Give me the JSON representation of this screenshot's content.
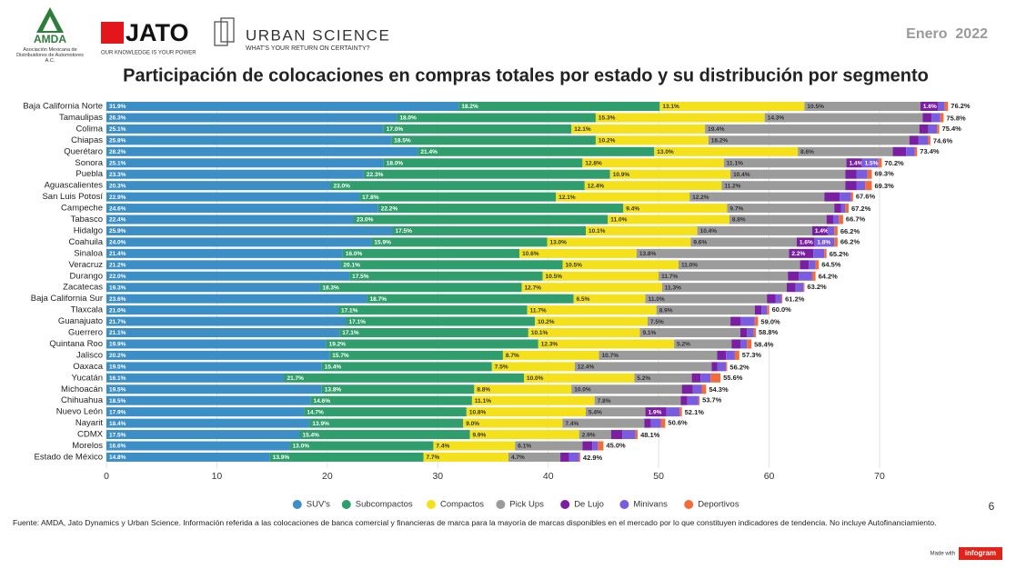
{
  "header": {
    "amda": "AMDA",
    "amda_sub": "Asociación Mexicana de Distribuidores de Automotores A.C.",
    "jato": "JATO",
    "jato_tag": "OUR KNOWLEDGE IS YOUR POWER",
    "urban": "URBAN SCIENCE",
    "urban_tag": "WHAT'S YOUR RETURN ON CERTAINTY?",
    "date": "Enero  2022",
    "page": "6"
  },
  "footer": {
    "source": "Fuente: AMDA, Jato Dynamics y Urban Science. Información referida a las colocaciones de banca comercial y financieras de marca para la mayoría de marcas disponibles en el mercado por lo que constituyen indicadores de tendencia. No incluye Autofinanciamiento.",
    "made": "Made with",
    "brand": "infogram"
  },
  "chart_data": {
    "type": "stacked_barh",
    "title": "Participación de colocaciones en compras totales por estado y su distribución por segmento",
    "categories": [
      "Baja California Norte",
      "Tamaulipas",
      "Colima",
      "Chiapas",
      "Querétaro",
      "Sonora",
      "Puebla",
      "Aguascalientes",
      "San Luis Potosí",
      "Campeche",
      "Tabasco",
      "Hidalgo",
      "Coahuila",
      "Sinaloa",
      "Veracruz",
      "Durango",
      "Zacatecas",
      "Baja California Sur",
      "Tlaxcala",
      "Guanajuato",
      "Guerrero",
      "Quintana Roo",
      "Jalisco",
      "Oaxaca",
      "Yucatán",
      "Michoacán",
      "Chihuahua",
      "Nuevo León",
      "Nayarit",
      "CDMX",
      "Morelos",
      "Estado de México"
    ],
    "series": [
      {
        "name": "SUV's",
        "color": "#3b8fc6",
        "text": "#ffffff",
        "values": [
          31.9,
          26.3,
          25.1,
          25.8,
          28.2,
          25.1,
          23.3,
          20.3,
          22.9,
          24.6,
          22.4,
          25.9,
          24.0,
          21.4,
          21.2,
          22.0,
          19.3,
          23.6,
          21.0,
          21.7,
          21.1,
          19.9,
          20.2,
          19.5,
          16.1,
          19.5,
          18.5,
          17.9,
          18.4,
          17.5,
          16.6,
          14.8
        ],
        "value_labels": [
          "31.9%",
          "26.3%",
          "25.1%",
          "25.8%",
          "28.2%",
          "25.1%",
          "23.3%",
          "20.3%",
          "22.9%",
          "24.6%",
          "22.4%",
          "25.9%",
          "24.0%",
          "21.4%",
          "21.2%",
          "22.0%",
          "19.3%",
          "23.6%",
          "21.0%",
          "21.7%",
          "21.1%",
          "19.9%",
          "20.2%",
          "19.5%",
          "16.1%",
          "19.5%",
          "18.5%",
          "17.9%",
          "18.4%",
          "17.5%",
          "16.6%",
          "14.8%"
        ]
      },
      {
        "name": "Subcompactos",
        "color": "#2f9e6c",
        "text": "#ffffff",
        "values": [
          18.2,
          18.0,
          17.0,
          18.5,
          21.4,
          18.0,
          22.3,
          23.0,
          17.8,
          22.2,
          23.0,
          17.5,
          15.9,
          16.0,
          20.1,
          17.5,
          18.3,
          18.7,
          17.1,
          17.1,
          17.1,
          19.2,
          15.7,
          15.4,
          21.7,
          13.8,
          14.6,
          14.7,
          13.9,
          15.4,
          13.0,
          13.9
        ],
        "value_labels": [
          "18.2%",
          "18.0%",
          "17.0%",
          "18.5%",
          "21.4%",
          "18.0%",
          "22.3%",
          "23.0%",
          "17.8%",
          "22.2%",
          "23.0%",
          "17.5%",
          "15.9%",
          "16.0%",
          "20.1%",
          "17.5%",
          "18.3%",
          "18.7%",
          "17.1%",
          "17.1%",
          "17.1%",
          "19.2%",
          "15.7%",
          "15.4%",
          "21.7%",
          "13.8%",
          "14.6%",
          "14.7%",
          "13.9%",
          "15.4%",
          "13.0%",
          "13.9%"
        ]
      },
      {
        "name": "Compactos",
        "color": "#f4e11b",
        "text": "#333333",
        "values": [
          13.1,
          15.3,
          12.1,
          10.2,
          13.0,
          12.8,
          10.9,
          12.4,
          12.1,
          9.4,
          11.0,
          10.1,
          13.0,
          10.6,
          10.5,
          10.5,
          12.7,
          6.5,
          11.7,
          10.2,
          10.1,
          12.3,
          8.7,
          7.5,
          10.0,
          8.8,
          11.1,
          10.8,
          9.0,
          9.9,
          7.4,
          7.7
        ],
        "value_labels": [
          "13.1%",
          "15.3%",
          "12.1%",
          "10.2%",
          "13.0%",
          "12.8%",
          "10.9%",
          "12.4%",
          "12.1%",
          "9.4%",
          "11.0%",
          "10.1%",
          "13.0%",
          "10.6%",
          "10.5%",
          "10.5%",
          "12.7%",
          "6.5%",
          "11.7%",
          "10.2%",
          "10.1%",
          "12.3%",
          "8.7%",
          "7.5%",
          "10.0%",
          "8.8%",
          "11.1%",
          "10.8%",
          "9.0%",
          "9.9%",
          "7.4%",
          "7.7%"
        ]
      },
      {
        "name": "Pick Ups",
        "color": "#9b9b9b",
        "text": "#333333",
        "values": [
          10.5,
          14.3,
          19.4,
          18.2,
          8.6,
          11.1,
          10.4,
          11.2,
          12.2,
          9.7,
          8.8,
          10.4,
          9.6,
          13.8,
          11.0,
          11.7,
          11.3,
          11.0,
          8.9,
          7.5,
          9.1,
          5.2,
          10.7,
          12.4,
          5.2,
          10.0,
          7.8,
          5.4,
          7.4,
          2.9,
          6.1,
          4.7
        ],
        "value_labels": [
          "10.5%",
          "14.3%",
          "19.4%",
          "18.2%",
          "8.6%",
          "11.1%",
          "10.4%",
          "11.2%",
          "12.2%",
          "9.7%",
          "8.8%",
          "10.4%",
          "9.6%",
          "13.8%",
          "11.0%",
          "11.7%",
          "11.3%",
          "11.0%",
          "8.9%",
          "7.5%",
          "9.1%",
          "5.2%",
          "10.7%",
          "12.4%",
          "5.2%",
          "10.0%",
          "7.8%",
          "5.4%",
          "7.4%",
          "2.9%",
          "6.1%",
          "4.7%"
        ]
      },
      {
        "name": "De Lujo",
        "color": "#7b1fa2",
        "text": "#ffffff",
        "values": [
          1.6,
          0.8,
          0.8,
          0.8,
          1.2,
          1.4,
          1.0,
          1.0,
          1.4,
          0.6,
          0.6,
          1.4,
          1.6,
          2.2,
          0.8,
          1.0,
          0.8,
          0.8,
          0.6,
          0.9,
          0.6,
          0.8,
          0.8,
          0.5,
          0.8,
          1.0,
          0.6,
          1.9,
          0.6,
          1.0,
          0.9,
          0.8
        ],
        "value_labels": [
          "1.6%",
          null,
          null,
          null,
          null,
          "1.4%",
          null,
          null,
          null,
          null,
          null,
          "1.4%",
          "1.6%",
          "2.2%",
          null,
          null,
          null,
          null,
          null,
          null,
          null,
          null,
          null,
          null,
          null,
          null,
          null,
          "1.9%",
          null,
          null,
          null,
          null
        ]
      },
      {
        "name": "Minivans",
        "color": "#7a5ce0",
        "text": "#ffffff",
        "values": [
          0.6,
          0.8,
          0.8,
          0.9,
          0.8,
          1.5,
          1.0,
          0.8,
          1.0,
          0.4,
          0.5,
          0.6,
          1.8,
          1.0,
          0.6,
          1.2,
          0.7,
          0.5,
          0.5,
          1.3,
          0.6,
          0.6,
          0.8,
          0.8,
          0.9,
          0.8,
          1.0,
          1.2,
          0.9,
          1.2,
          0.5,
          0.9
        ],
        "value_labels": [
          null,
          null,
          null,
          null,
          null,
          "1.5%",
          null,
          null,
          null,
          null,
          null,
          null,
          "1.8%",
          null,
          null,
          null,
          null,
          null,
          null,
          null,
          null,
          null,
          null,
          null,
          null,
          null,
          null,
          null,
          null,
          null,
          null,
          null
        ]
      },
      {
        "name": "Deportivos",
        "color": "#f26b3b",
        "text": "#ffffff",
        "values": [
          0.3,
          0.3,
          0.2,
          0.2,
          0.2,
          0.3,
          0.4,
          0.6,
          0.2,
          0.3,
          0.4,
          0.3,
          0.3,
          0.2,
          0.3,
          0.3,
          0.1,
          0.1,
          0.2,
          0.3,
          0.2,
          0.4,
          0.4,
          0.1,
          0.9,
          0.4,
          0.1,
          0.2,
          0.4,
          0.2,
          0.5,
          0.1
        ],
        "value_labels": [
          null,
          null,
          null,
          null,
          null,
          null,
          null,
          null,
          null,
          null,
          null,
          null,
          null,
          null,
          null,
          null,
          null,
          null,
          null,
          null,
          null,
          null,
          null,
          null,
          null,
          null,
          null,
          null,
          null,
          null,
          null,
          null
        ]
      }
    ],
    "totals": [
      76.2,
      75.8,
      75.4,
      74.6,
      73.4,
      70.2,
      69.3,
      69.3,
      67.6,
      67.2,
      66.7,
      66.2,
      66.2,
      65.2,
      64.5,
      64.2,
      63.2,
      61.2,
      60.0,
      59.0,
      58.8,
      58.4,
      57.3,
      56.2,
      55.6,
      54.3,
      53.7,
      52.1,
      50.6,
      48.1,
      45.0,
      42.9
    ],
    "total_labels": [
      "76.2%",
      "75.8%",
      "75.4%",
      "74.6%",
      "73.4%",
      "70.2%",
      "69.3%",
      "69.3%",
      "67.6%",
      "67.2%",
      "66.7%",
      "66.2%",
      "66.2%",
      "65.2%",
      "64.5%",
      "64.2%",
      "63.2%",
      "61.2%",
      "60.0%",
      "59.0%",
      "58.8%",
      "58.4%",
      "57.3%",
      "56.2%",
      "55.6%",
      "54.3%",
      "53.7%",
      "52.1%",
      "50.6%",
      "48.1%",
      "45.0%",
      "42.9%"
    ],
    "xlim": [
      0,
      78
    ],
    "xticks": [
      0,
      10,
      20,
      30,
      40,
      50,
      60,
      70
    ],
    "grid": true,
    "legend": "bottom"
  }
}
